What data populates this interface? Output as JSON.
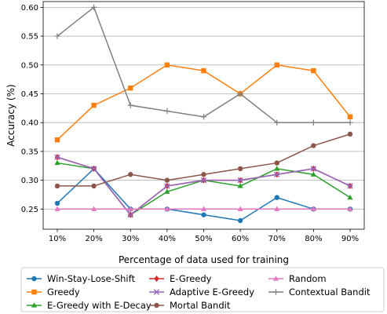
{
  "chart_data": {
    "type": "line",
    "xlabel": "Percentage of data used for training",
    "ylabel": "Accuracy (%)",
    "categories": [
      "10%",
      "20%",
      "30%",
      "40%",
      "50%",
      "60%",
      "70%",
      "80%",
      "90%"
    ],
    "ylim": [
      0.215,
      0.61
    ],
    "yticks": [
      0.25,
      0.3,
      0.35,
      0.4,
      0.45,
      0.5,
      0.55,
      0.6
    ],
    "ytick_labels": [
      "0.25",
      "0.30",
      "0.35",
      "0.40",
      "0.45",
      "0.50",
      "0.55",
      "0.60"
    ],
    "grid": "horizontal",
    "legend_position": "bottom",
    "series": [
      {
        "name": "Win-Stay-Lose-Shift",
        "color": "#1f77b4",
        "marker": "circle",
        "values": [
          0.26,
          0.32,
          0.25,
          0.25,
          0.24,
          0.23,
          0.27,
          0.25,
          0.25
        ]
      },
      {
        "name": "Greedy",
        "color": "#ff7f0e",
        "marker": "square",
        "values": [
          0.37,
          0.43,
          0.46,
          0.5,
          0.49,
          0.45,
          0.5,
          0.49,
          0.41
        ]
      },
      {
        "name": "E-Greedy with E-Decay",
        "color": "#2ca02c",
        "marker": "triangle-up",
        "values": [
          0.33,
          0.32,
          0.24,
          0.28,
          0.3,
          0.29,
          0.32,
          0.31,
          0.27
        ]
      },
      {
        "name": "E-Greedy",
        "color": "#d62728",
        "marker": "diamond",
        "values": [
          0.34,
          0.32,
          0.24,
          0.29,
          0.3,
          0.3,
          0.31,
          0.32,
          0.29
        ]
      },
      {
        "name": "Adaptive E-Greedy",
        "color": "#9467bd",
        "marker": "x",
        "values": [
          0.34,
          0.32,
          0.24,
          0.29,
          0.3,
          0.3,
          0.31,
          0.32,
          0.29
        ]
      },
      {
        "name": "Mortal Bandit",
        "color": "#8c564b",
        "marker": "circle",
        "values": [
          0.29,
          0.29,
          0.31,
          0.3,
          0.31,
          0.32,
          0.33,
          0.36,
          0.38
        ]
      },
      {
        "name": "Random",
        "color": "#e377c2",
        "marker": "triangle-up",
        "values": [
          0.25,
          0.25,
          0.25,
          0.25,
          0.25,
          0.25,
          0.25,
          0.25,
          0.25
        ]
      },
      {
        "name": "Contextual Bandit",
        "color": "#7f7f7f",
        "marker": "plus",
        "values": [
          0.55,
          0.6,
          0.43,
          0.42,
          0.41,
          0.45,
          0.4,
          0.4,
          0.4
        ]
      }
    ]
  }
}
